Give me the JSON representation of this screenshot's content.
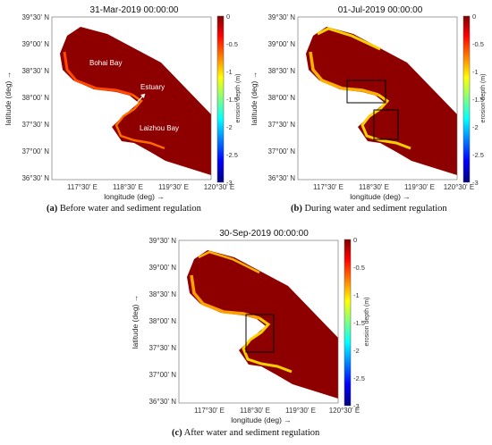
{
  "panels": [
    {
      "id": "a",
      "title": "31-Mar-2019 00:00:00",
      "caption_tag": "(a)",
      "caption_text": "Before water and sediment regulation",
      "annotations": [
        "Bohai Bay",
        "Estuary",
        "Laizhou Bay"
      ],
      "boxes": []
    },
    {
      "id": "b",
      "title": "01-Jul-2019 00:00:00",
      "caption_tag": "(b)",
      "caption_text": "During water and sediment regulation",
      "annotations": [],
      "boxes": [
        "estuary-box",
        "laizhou-box"
      ]
    },
    {
      "id": "c",
      "title": "30-Sep-2019 00:00:00",
      "caption_tag": "(c)",
      "caption_text": "After water and sediment regulation",
      "annotations": [],
      "boxes": [
        "estuary-box"
      ]
    }
  ],
  "axes": {
    "ylabel": "latitude (deg) →",
    "xlabel": "longitude (deg) →",
    "yticks": [
      "39°30' N",
      "39°00' N",
      "38°30' N",
      "38°00' N",
      "37°30' N",
      "37°00' N",
      "36°30' N"
    ],
    "xticks": [
      "117°30' E",
      "118°30' E",
      "119°30' E",
      "120°30' E"
    ]
  },
  "colorbar": {
    "label": "erosion depth (m)",
    "ticks": [
      "0",
      "-0.5",
      "-1",
      "-1.5",
      "-2",
      "-2.5",
      "-3"
    ],
    "range": [
      -3,
      0
    ],
    "colormap": "jet"
  },
  "colors": {
    "sea": "#8e0000",
    "shore": "#ff3a00",
    "shallow": "#ffd000",
    "box": "#000000"
  }
}
